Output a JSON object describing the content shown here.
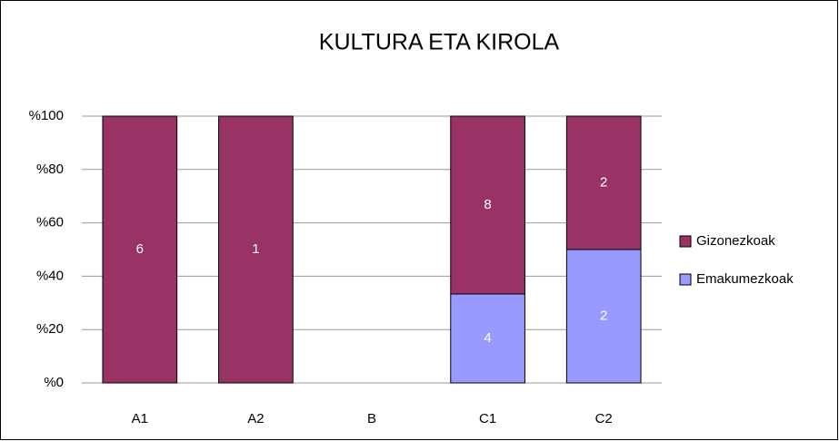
{
  "chart_data": {
    "type": "bar",
    "stack": "percent",
    "title": "KULTURA ETA KIROLA",
    "categories": [
      "A1",
      "A2",
      "B",
      "C1",
      "C2"
    ],
    "series": [
      {
        "name": "Emakumezkoak",
        "color": "#9999ff",
        "values": [
          0,
          0,
          0,
          4,
          2
        ]
      },
      {
        "name": "Gizonezkoak",
        "color": "#993366",
        "values": [
          6,
          1,
          0,
          8,
          2
        ]
      }
    ],
    "ylim": [
      0,
      100
    ],
    "yticks": [
      {
        "value": 0,
        "label": "%0"
      },
      {
        "value": 20,
        "label": "%20"
      },
      {
        "value": 40,
        "label": "%40"
      },
      {
        "value": 60,
        "label": "%60"
      },
      {
        "value": 80,
        "label": "%80"
      },
      {
        "value": 100,
        "label": "%100"
      }
    ],
    "grid": true,
    "legend": "right"
  }
}
